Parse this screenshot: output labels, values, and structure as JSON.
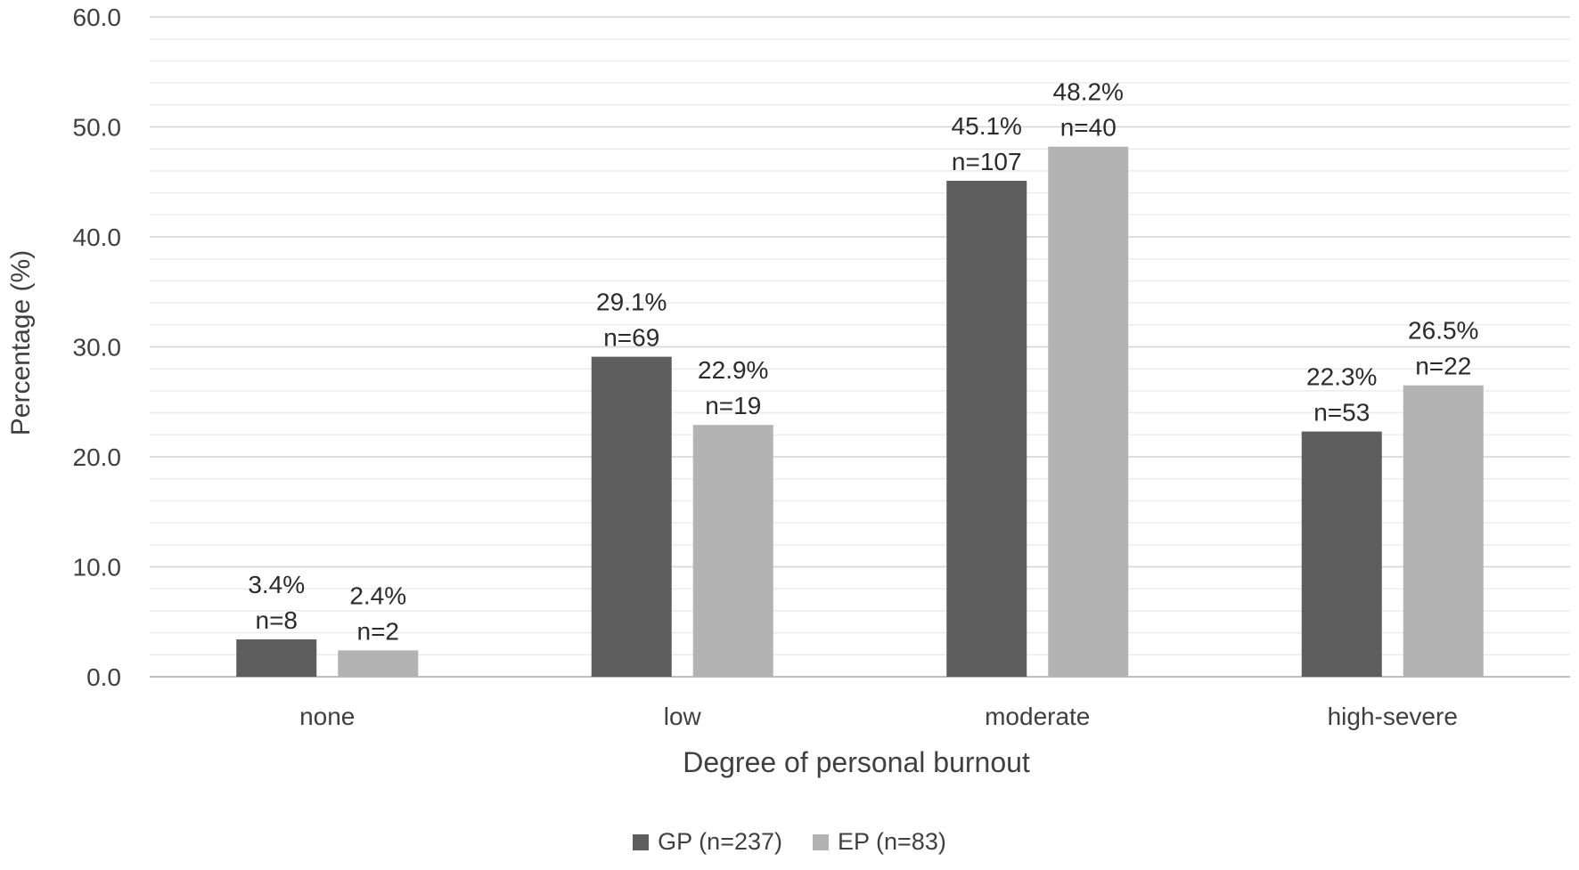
{
  "chart_data": {
    "type": "bar",
    "title": "",
    "xlabel": "Degree of personal burnout",
    "ylabel": "Percentage (%)",
    "ylim": [
      0,
      60
    ],
    "y_major_step": 10,
    "y_minor_step": 2,
    "y_tick_labels": [
      "0.0",
      "10.0",
      "20.0",
      "30.0",
      "40.0",
      "50.0",
      "60.0"
    ],
    "categories": [
      "none",
      "low",
      "moderate",
      "high-severe"
    ],
    "grid": true,
    "legend_position": "bottom",
    "series": [
      {
        "name": "GP (n=237)",
        "color": "#5e5e5e",
        "values": [
          3.4,
          29.1,
          45.1,
          22.3
        ],
        "pct_labels": [
          "3.4%",
          "29.1%",
          "45.1%",
          "22.3%"
        ],
        "n_labels": [
          "n=8",
          "n=69",
          "n=107",
          "n=53"
        ]
      },
      {
        "name": "EP (n=83)",
        "color": "#b3b3b3",
        "values": [
          2.4,
          22.9,
          48.2,
          26.5
        ],
        "pct_labels": [
          "2.4%",
          "22.9%",
          "48.2%",
          "26.5%"
        ],
        "n_labels": [
          "n=2",
          "n=19",
          "n=40",
          "n=22"
        ]
      }
    ]
  }
}
